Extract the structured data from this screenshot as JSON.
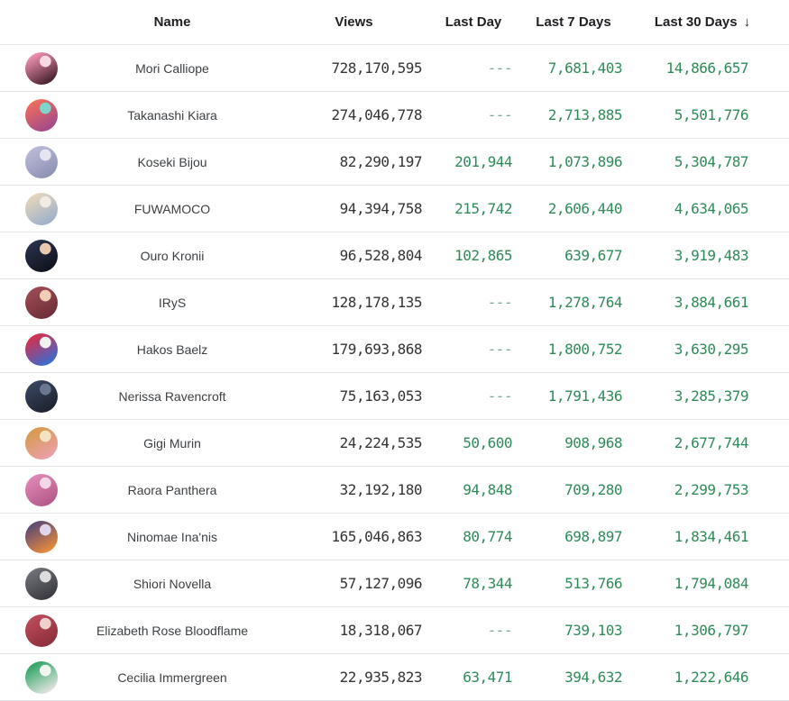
{
  "colors": {
    "background": "#ffffff",
    "header_text": "#202124",
    "name_text": "#3c4043",
    "views_text": "#333333",
    "positive_green": "#2e8b57",
    "dash_green": "#74a98b",
    "divider": "#e1e3e6"
  },
  "table": {
    "dash": "---",
    "columns": [
      {
        "key": "name",
        "label": "Name"
      },
      {
        "key": "views",
        "label": "Views"
      },
      {
        "key": "last_day",
        "label": "Last Day"
      },
      {
        "key": "last_7",
        "label": "Last 7 Days"
      },
      {
        "key": "last_30",
        "label": "Last 30 Days",
        "sort": "desc",
        "sort_icon": "↓"
      }
    ],
    "rows": [
      {
        "name": "Mori Calliope",
        "views": "728,170,595",
        "last_day": "---",
        "last_7": "7,681,403",
        "last_30": "14,866,657",
        "avatar": [
          "#ee8fae",
          "#4a2430",
          "#f7d9e3"
        ]
      },
      {
        "name": "Takanashi Kiara",
        "views": "274,046,778",
        "last_day": "---",
        "last_7": "2,713,885",
        "last_30": "5,501,776",
        "avatar": [
          "#ee6d5e",
          "#a04a8a",
          "#7fd4c9"
        ]
      },
      {
        "name": "Koseki Bijou",
        "views": "82,290,197",
        "last_day": "201,944",
        "last_7": "1,073,896",
        "last_30": "5,304,787",
        "avatar": [
          "#b9b9d6",
          "#8e93b4",
          "#e6e6f0"
        ]
      },
      {
        "name": "FUWAMOCO",
        "views": "94,394,758",
        "last_day": "215,742",
        "last_7": "2,606,440",
        "last_30": "4,634,065",
        "avatar": [
          "#e3d5bd",
          "#9fb0ca",
          "#f0ece4"
        ]
      },
      {
        "name": "Ouro Kronii",
        "views": "96,528,804",
        "last_day": "102,865",
        "last_7": "639,677",
        "last_30": "3,919,483",
        "avatar": [
          "#28304a",
          "#11141f",
          "#e8c9b0"
        ]
      },
      {
        "name": "IRyS",
        "views": "128,178,135",
        "last_day": "---",
        "last_7": "1,278,764",
        "last_30": "3,884,661",
        "avatar": [
          "#9c4a52",
          "#6e2f3a",
          "#f0cdb4"
        ]
      },
      {
        "name": "Hakos Baelz",
        "views": "179,693,868",
        "last_day": "---",
        "last_7": "1,800,752",
        "last_30": "3,630,295",
        "avatar": [
          "#d5314e",
          "#3a6bd0",
          "#f2f2f2"
        ]
      },
      {
        "name": "Nerissa Ravencroft",
        "views": "75,163,053",
        "last_day": "---",
        "last_7": "1,791,436",
        "last_30": "3,285,379",
        "avatar": [
          "#39445c",
          "#1d2330",
          "#6b7690"
        ]
      },
      {
        "name": "Gigi Murin",
        "views": "24,224,535",
        "last_day": "50,600",
        "last_7": "908,968",
        "last_30": "2,677,744",
        "avatar": [
          "#d99a4e",
          "#e9a0a8",
          "#f3e3c2"
        ]
      },
      {
        "name": "Raora Panthera",
        "views": "32,192,180",
        "last_day": "94,848",
        "last_7": "709,280",
        "last_30": "2,299,753",
        "avatar": [
          "#df86b4",
          "#b45a8a",
          "#f2d7e6"
        ]
      },
      {
        "name": "Ninomae Ina'nis",
        "views": "165,046,863",
        "last_day": "80,774",
        "last_7": "698,897",
        "last_30": "1,834,461",
        "avatar": [
          "#5c4a72",
          "#e68a3c",
          "#ded6e8"
        ]
      },
      {
        "name": "Shiori Novella",
        "views": "57,127,096",
        "last_day": "78,344",
        "last_7": "513,766",
        "last_30": "1,794,084",
        "avatar": [
          "#6f6f77",
          "#3a3a40",
          "#dcdcde"
        ]
      },
      {
        "name": "Elizabeth Rose Bloodflame",
        "views": "18,318,067",
        "last_day": "---",
        "last_7": "739,103",
        "last_30": "1,306,797",
        "avatar": [
          "#bb4a58",
          "#8e2f3d",
          "#eed2ce"
        ]
      },
      {
        "name": "Cecilia Immergreen",
        "views": "22,935,823",
        "last_day": "63,471",
        "last_7": "394,632",
        "last_30": "1,222,646",
        "avatar": [
          "#2fa566",
          "#dfe3de",
          "#f2f4f0"
        ]
      }
    ]
  }
}
